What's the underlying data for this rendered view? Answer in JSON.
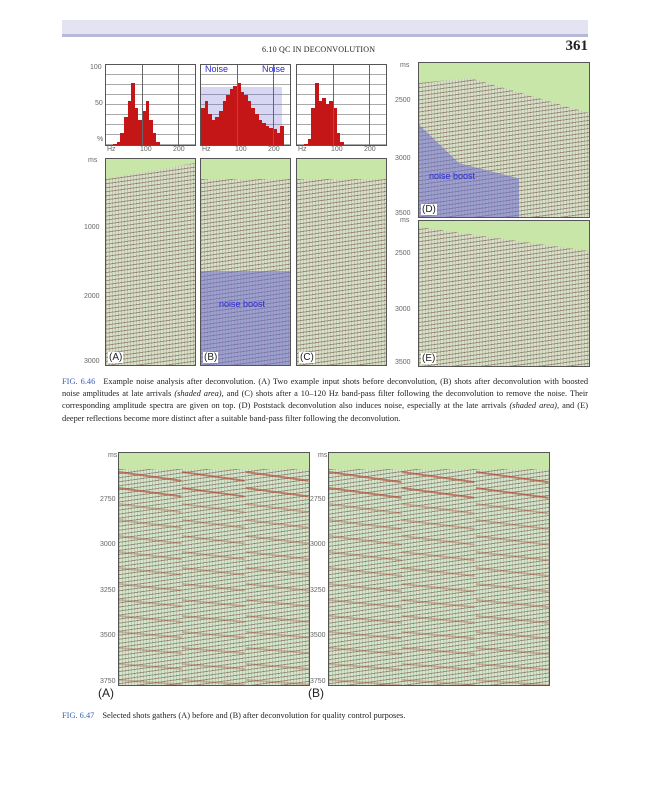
{
  "header": {
    "running_title": "6.10 QC IN DECONVOLUTION",
    "page_number": "361"
  },
  "fig646": {
    "spectra_axis": {
      "y_ticks": [
        "100",
        "50",
        "%"
      ],
      "x_ticks": [
        "Hz",
        "100",
        "200"
      ]
    },
    "noise_labels": [
      "Noise",
      "Noise"
    ],
    "time_axis": [
      "ms",
      "1000",
      "2000",
      "3000"
    ],
    "right_axis_d": [
      "ms",
      "2500",
      "3000",
      "3500"
    ],
    "right_axis_e": [
      "ms",
      "2500",
      "3000",
      "3500"
    ],
    "panel_labels": [
      "(A)",
      "(B)",
      "(C)",
      "(D)",
      "(E)"
    ],
    "noise_boost": "noise boost",
    "caption_label": "FIG. 6.46",
    "caption_parts": [
      "Example noise analysis after deconvolution. (A) Two example input shots before deconvolution, (B) shots after deconvolution with boosted noise amplitudes at late arrivals ",
      "(shaded area)",
      ", and (C) shots after a 10–120 Hz band-pass filter following the deconvolution to remove the noise. Their corresponding amplitude spectra are given on top. (D) Poststack deconvolution also induces noise, especially at the late arrivals ",
      "(shaded area)",
      ", and (E) deeper reflections become more distinct after a suitable band-pass filter following the deconvolution."
    ]
  },
  "fig647": {
    "time_axis": [
      "ms",
      "2750",
      "3000",
      "3250",
      "3500",
      "3750"
    ],
    "panel_labels": [
      "(A)",
      "(B)"
    ],
    "caption_label": "FIG. 6.47",
    "caption": "Selected shots gathers (A) before and (B) after deconvolution for quality control purposes."
  }
}
